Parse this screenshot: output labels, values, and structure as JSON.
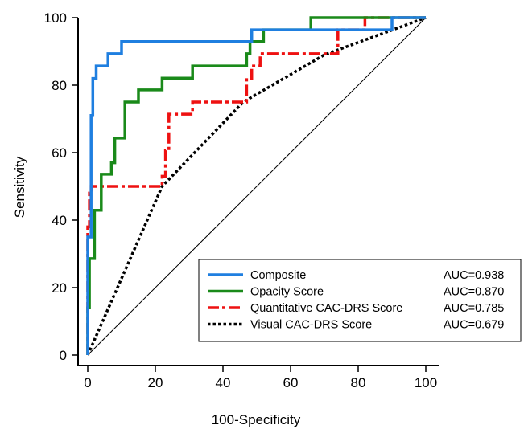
{
  "chart_data": {
    "type": "line",
    "title": "",
    "xlabel": "100-Specificity",
    "ylabel": "Sensitivity",
    "xlim": [
      0,
      100
    ],
    "ylim": [
      0,
      100
    ],
    "x_ticks": [
      0,
      20,
      40,
      60,
      80,
      100
    ],
    "y_ticks": [
      0,
      20,
      40,
      60,
      80,
      100
    ],
    "grid": false,
    "reference_line": true,
    "legend_position": "bottom-right",
    "series": [
      {
        "name": "Composite",
        "auc_label": "AUC=0.938",
        "color": "#1f7fe0",
        "style": "solid",
        "points": [
          [
            0,
            0
          ],
          [
            0,
            35
          ],
          [
            1,
            35
          ],
          [
            1,
            71
          ],
          [
            1.5,
            71
          ],
          [
            1.5,
            82
          ],
          [
            2.5,
            82
          ],
          [
            2.5,
            85.7
          ],
          [
            6,
            85.7
          ],
          [
            6,
            89.3
          ],
          [
            10,
            89.3
          ],
          [
            10,
            92.9
          ],
          [
            48.5,
            92.9
          ],
          [
            48.5,
            96.4
          ],
          [
            90,
            96.4
          ],
          [
            90,
            100
          ],
          [
            100,
            100
          ]
        ]
      },
      {
        "name": "Opacity Score",
        "auc_label": "AUC=0.870",
        "color": "#1a8a1a",
        "style": "solid",
        "points": [
          [
            0,
            0
          ],
          [
            0,
            14
          ],
          [
            0.5,
            14
          ],
          [
            0.5,
            28.6
          ],
          [
            2,
            28.6
          ],
          [
            2,
            42.9
          ],
          [
            4,
            42.9
          ],
          [
            4,
            53.6
          ],
          [
            7,
            53.6
          ],
          [
            7,
            57
          ],
          [
            8,
            57
          ],
          [
            8,
            64.3
          ],
          [
            11,
            64.3
          ],
          [
            11,
            75
          ],
          [
            15,
            75
          ],
          [
            15,
            78.6
          ],
          [
            22,
            78.6
          ],
          [
            22,
            82.1
          ],
          [
            31,
            82.1
          ],
          [
            31,
            85.7
          ],
          [
            47,
            85.7
          ],
          [
            47,
            89.3
          ],
          [
            48,
            89.3
          ],
          [
            48,
            92.9
          ],
          [
            52,
            92.9
          ],
          [
            52,
            96.4
          ],
          [
            66,
            96.4
          ],
          [
            66,
            100
          ],
          [
            100,
            100
          ]
        ]
      },
      {
        "name": "Quantitative CAC-DRS Score",
        "auc_label": "AUC=0.785",
        "color": "#ee1111",
        "style": "dashdot",
        "points": [
          [
            0,
            0
          ],
          [
            0,
            38
          ],
          [
            0.5,
            38
          ],
          [
            0.5,
            48
          ],
          [
            1,
            48
          ],
          [
            1,
            50
          ],
          [
            22,
            50
          ],
          [
            22,
            53
          ],
          [
            23,
            53
          ],
          [
            23,
            60.7
          ],
          [
            24,
            60.7
          ],
          [
            24,
            71.4
          ],
          [
            31,
            71.4
          ],
          [
            31,
            75
          ],
          [
            47,
            75
          ],
          [
            47,
            82.1
          ],
          [
            48.5,
            82.1
          ],
          [
            48.5,
            85.7
          ],
          [
            51,
            85.7
          ],
          [
            51,
            89.3
          ],
          [
            74,
            89.3
          ],
          [
            74,
            96.4
          ],
          [
            82,
            96.4
          ],
          [
            82,
            100
          ],
          [
            100,
            100
          ]
        ]
      },
      {
        "name": "Visual CAC-DRS Score",
        "auc_label": "AUC=0.679",
        "color": "#000000",
        "style": "dotted",
        "points": [
          [
            0,
            0
          ],
          [
            22,
            50
          ],
          [
            46,
            75
          ],
          [
            70,
            89
          ],
          [
            100,
            100
          ]
        ]
      }
    ]
  }
}
